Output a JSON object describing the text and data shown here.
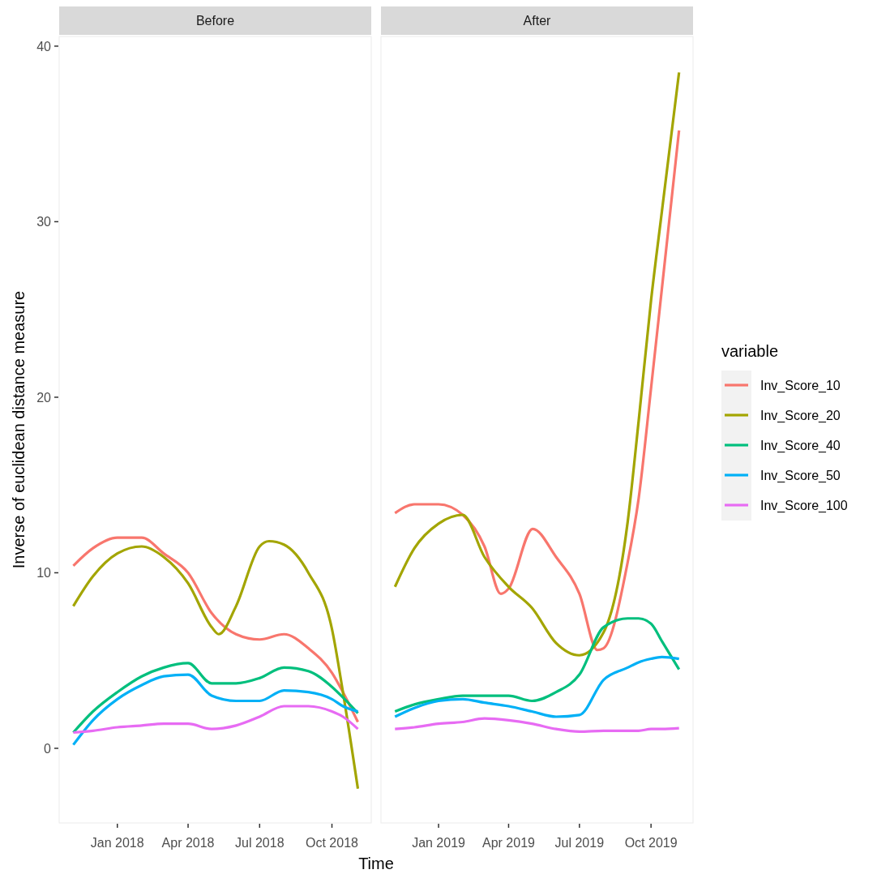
{
  "chart_data": [
    {
      "type": "line",
      "title": "Before",
      "xlabel": "Time",
      "ylabel": "Inverse of euclidean distance measure",
      "x": [
        "2017-11-06",
        "2017-12-01",
        "2018-01-01",
        "2018-02-01",
        "2018-03-01",
        "2018-04-01",
        "2018-05-01",
        "2018-06-01",
        "2018-07-01",
        "2018-08-01",
        "2018-09-01",
        "2018-10-01",
        "2018-10-15",
        "2018-11-03"
      ],
      "xlim": [
        "2017-10-19",
        "2018-11-20"
      ],
      "ylim": [
        -4.25,
        40.55
      ],
      "legend": "right",
      "legend_title": "variable",
      "xticks": [
        {
          "value": "2018-01-01",
          "label": "Jan 2018"
        },
        {
          "value": "2018-04-01",
          "label": "Apr 2018"
        },
        {
          "value": "2018-07-01",
          "label": "Jul 2018"
        },
        {
          "value": "2018-10-01",
          "label": "Oct 2018"
        }
      ],
      "yticks": [
        0,
        10,
        20,
        30,
        40
      ],
      "grid": false,
      "line_style": "solid",
      "marker": "none",
      "series": [
        {
          "name": "Inv_Score_10",
          "color": "#f8766d",
          "values": [
            10.4,
            11.4,
            12.0,
            12.0,
            11.1,
            10.0,
            7.7,
            6.5,
            6.2,
            6.5,
            5.7,
            4.3,
            3.2,
            1.5
          ]
        },
        {
          "name": "Inv_Score_20",
          "color": "#a3a500",
          "x": [
            "2017-11-06",
            "2017-12-01",
            "2018-01-01",
            "2018-02-01",
            "2018-03-01",
            "2018-04-01",
            "2018-05-01",
            "2018-05-10",
            "2018-06-01",
            "2018-07-01",
            "2018-07-13",
            "2018-08-01",
            "2018-09-01",
            "2018-10-01",
            "2018-10-15",
            "2018-11-03"
          ],
          "values": [
            8.1,
            9.8,
            11.1,
            11.5,
            10.9,
            9.4,
            6.9,
            6.5,
            8.1,
            11.5,
            11.8,
            11.6,
            10.0,
            6.8,
            3.2,
            -2.3
          ]
        },
        {
          "name": "Inv_Score_40",
          "color": "#00bf7d",
          "values": [
            0.9,
            2.1,
            3.2,
            4.1,
            4.6,
            4.85,
            3.7,
            3.7,
            4.0,
            4.6,
            4.4,
            3.5,
            2.9,
            2.0
          ]
        },
        {
          "name": "Inv_Score_50",
          "color": "#00b0f6",
          "values": [
            0.2,
            1.6,
            2.8,
            3.6,
            4.1,
            4.2,
            3.0,
            2.7,
            2.7,
            3.3,
            3.2,
            2.8,
            2.4,
            2.1
          ]
        },
        {
          "name": "Inv_Score_100",
          "color": "#e76bf3",
          "values": [
            0.9,
            1.0,
            1.2,
            1.3,
            1.4,
            1.4,
            1.1,
            1.3,
            1.8,
            2.4,
            2.4,
            2.1,
            1.8,
            1.1
          ]
        }
      ]
    },
    {
      "type": "line",
      "title": "After",
      "x": [
        "2018-11-06",
        "2018-12-01",
        "2019-01-01",
        "2019-02-01",
        "2019-03-01",
        "2019-04-01",
        "2019-05-01",
        "2019-06-01",
        "2019-07-01",
        "2019-08-01",
        "2019-09-01",
        "2019-09-15",
        "2019-10-01",
        "2019-10-15",
        "2019-11-06"
      ],
      "xticks": [
        {
          "value": "2019-01-01",
          "label": "Jan 2019"
        },
        {
          "value": "2019-04-01",
          "label": "Apr 2019"
        },
        {
          "value": "2019-07-01",
          "label": "Jul 2019"
        },
        {
          "value": "2019-10-01",
          "label": "Oct 2019"
        }
      ],
      "xlim": [
        "2018-10-19",
        "2019-11-24"
      ],
      "ylim": [
        -4.25,
        40.55
      ],
      "tick_labels": "x",
      "grid": false,
      "line_style": "solid",
      "marker": "none",
      "series": [
        {
          "color": "#f8766d",
          "x": [
            "2018-11-06",
            "2018-12-01",
            "2019-01-01",
            "2019-02-01",
            "2019-03-01",
            "2019-03-22",
            "2019-04-01",
            "2019-05-02",
            "2019-06-01",
            "2019-07-01",
            "2019-07-24",
            "2019-08-01",
            "2019-09-01",
            "2019-09-15",
            "2019-10-01",
            "2019-10-15",
            "2019-11-06"
          ],
          "values": [
            13.4,
            13.9,
            13.9,
            13.3,
            11.5,
            8.8,
            9.1,
            12.5,
            10.9,
            8.8,
            5.6,
            5.7,
            10.6,
            14.2,
            20.5,
            26.2,
            35.2
          ]
        },
        {
          "color": "#a3a500",
          "values": [
            9.2,
            11.4,
            12.8,
            13.3,
            10.9,
            9.2,
            8.0,
            6.0,
            5.3,
            6.6,
            12.9,
            18.6,
            25.5,
            30.6,
            38.5
          ]
        },
        {
          "color": "#00bf7d",
          "values": [
            2.1,
            2.5,
            2.8,
            3.0,
            3.0,
            3.0,
            2.7,
            3.2,
            4.2,
            6.9,
            7.4,
            7.4,
            7.1,
            6.1,
            4.5
          ]
        },
        {
          "color": "#00b0f6",
          "values": [
            1.8,
            2.3,
            2.7,
            2.8,
            2.6,
            2.4,
            2.1,
            1.8,
            1.9,
            3.9,
            4.6,
            4.9,
            5.1,
            5.2,
            5.1
          ]
        },
        {
          "color": "#e76bf3",
          "values": [
            1.1,
            1.2,
            1.4,
            1.5,
            1.7,
            1.6,
            1.4,
            1.1,
            0.95,
            1.0,
            1.0,
            1.0,
            1.1,
            1.1,
            1.15
          ]
        }
      ]
    }
  ]
}
